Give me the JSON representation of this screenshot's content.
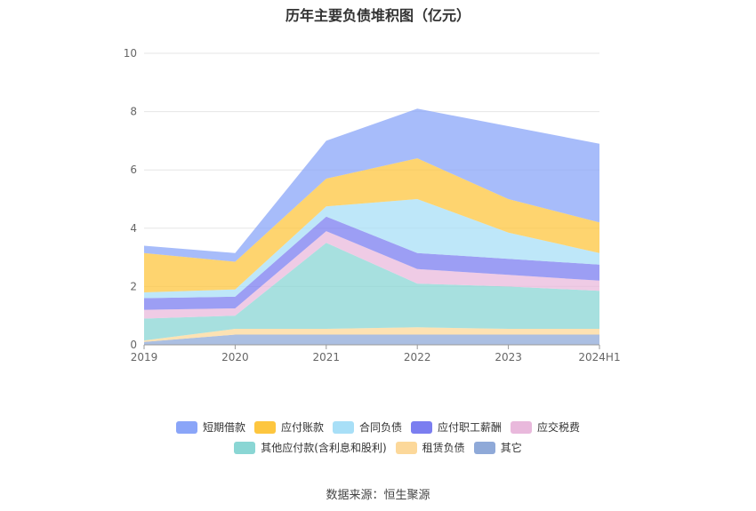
{
  "title": "历年主要负债堆积图（亿元）",
  "source_text": "数据来源：恒生聚源",
  "chart_data": {
    "type": "area",
    "stacked": true,
    "title": "历年主要负债堆积图（亿元）",
    "x": [
      "2019",
      "2020",
      "2021",
      "2022",
      "2023",
      "2024H1"
    ],
    "ylim": [
      0,
      10
    ],
    "yticks": [
      0,
      2,
      4,
      6,
      8,
      10
    ],
    "grid": true,
    "legend_position": "bottom",
    "series": [
      {
        "name": "其它",
        "color": "#8fa9d8",
        "values": [
          0.1,
          0.35,
          0.35,
          0.35,
          0.35,
          0.35
        ]
      },
      {
        "name": "租赁负债",
        "color": "#fcd89a",
        "values": [
          0.05,
          0.2,
          0.2,
          0.25,
          0.2,
          0.2
        ]
      },
      {
        "name": "其他应付款(含利息和股利)",
        "color": "#8ad6d4",
        "values": [
          0.75,
          0.45,
          2.95,
          1.5,
          1.45,
          1.3
        ]
      },
      {
        "name": "应交税费",
        "color": "#e9b9dc",
        "values": [
          0.3,
          0.25,
          0.4,
          0.5,
          0.4,
          0.35
        ]
      },
      {
        "name": "应付职工薪酬",
        "color": "#7b7ef0",
        "values": [
          0.4,
          0.4,
          0.5,
          0.55,
          0.55,
          0.55
        ]
      },
      {
        "name": "合同负债",
        "color": "#a8dff7",
        "values": [
          0.2,
          0.25,
          0.35,
          1.85,
          0.9,
          0.4
        ]
      },
      {
        "name": "应付账款",
        "color": "#fdc63f",
        "values": [
          1.35,
          0.95,
          0.95,
          1.4,
          1.15,
          1.05
        ]
      },
      {
        "name": "短期借款",
        "color": "#8aa5f8",
        "values": [
          0.25,
          0.3,
          1.3,
          1.7,
          2.5,
          2.7
        ]
      }
    ]
  },
  "legend": {
    "row1": [
      {
        "label": "短期借款",
        "color": "#8aa5f8"
      },
      {
        "label": "应付账款",
        "color": "#fdc63f"
      },
      {
        "label": "合同负债",
        "color": "#a8dff7"
      },
      {
        "label": "应付职工薪酬",
        "color": "#7b7ef0"
      },
      {
        "label": "应交税费",
        "color": "#e9b9dc"
      }
    ],
    "row2": [
      {
        "label": "其他应付款(含利息和股利)",
        "color": "#8ad6d4"
      },
      {
        "label": "租赁负债",
        "color": "#fcd89a"
      },
      {
        "label": "其它",
        "color": "#8fa9d8"
      }
    ]
  }
}
